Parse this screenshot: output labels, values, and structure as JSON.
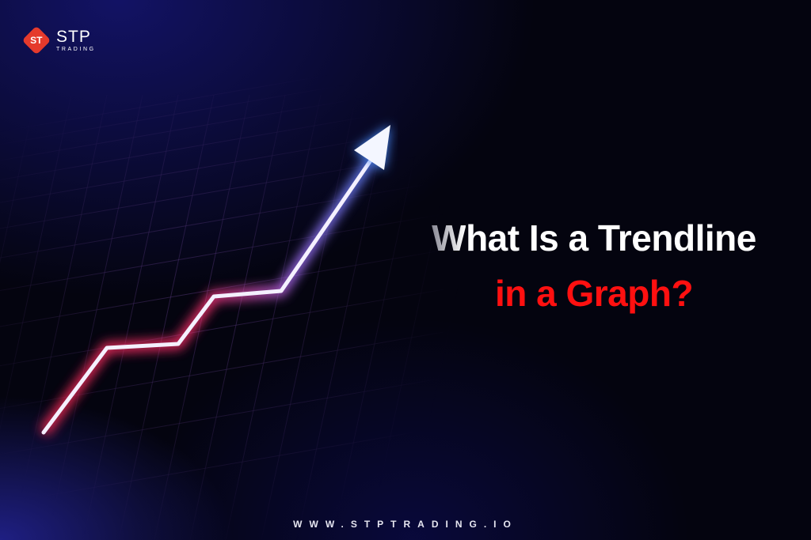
{
  "brand": {
    "name": "STP",
    "sub": "TRADING",
    "mark": "ST",
    "color": "#e53a2c"
  },
  "headline": {
    "line1_first": "W",
    "line1_rest": "hat Is a Trendline",
    "line2": "in a Graph?",
    "line2_color": "#ff1010"
  },
  "footer": {
    "url": "WWW.STPTRADING.IO"
  },
  "illustration": {
    "icon": "rising-trendline-arrow",
    "colors": {
      "start": "#ff2a55",
      "end": "#4a8cff"
    }
  }
}
